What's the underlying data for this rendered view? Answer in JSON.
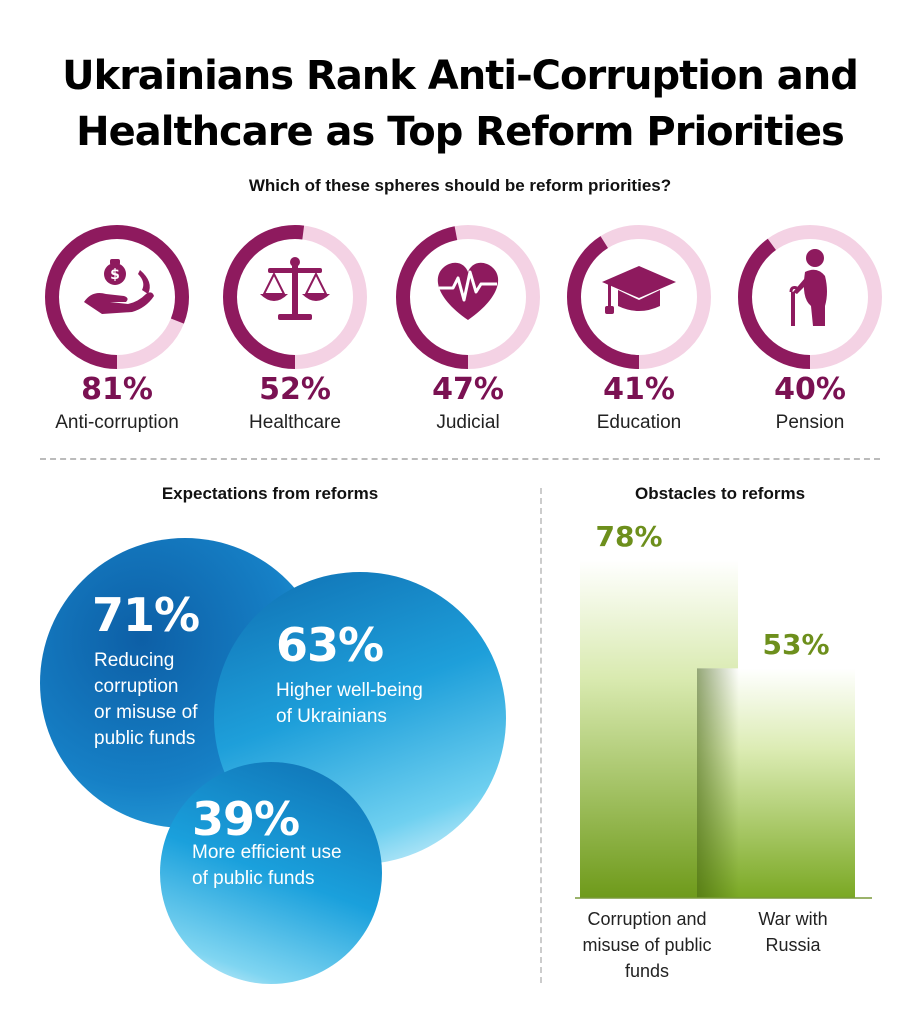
{
  "title": {
    "line1": "Ukrainians Rank Anti-Corruption and",
    "line2": "Healthcare as Top Reform Priorities"
  },
  "subtitle": "Which of these spheres should be reform priorities?",
  "priorities": [
    {
      "pct": "81%",
      "label": "Anti-corruption",
      "value": 81,
      "icon": "money-bag-hand-icon"
    },
    {
      "pct": "52%",
      "label": "Healthcare",
      "value": 52,
      "icon": "scales-icon"
    },
    {
      "pct": "47%",
      "label": "Judicial",
      "value": 47,
      "icon": "heart-pulse-icon"
    },
    {
      "pct": "41%",
      "label": "Education",
      "value": 41,
      "icon": "graduation-cap-icon"
    },
    {
      "pct": "40%",
      "label": "Pension",
      "value": 40,
      "icon": "elderly-person-icon"
    }
  ],
  "expectations": {
    "title": "Expectations from reforms",
    "items": [
      {
        "pct": "71%",
        "text": [
          "Reducing",
          "corruption",
          "or misuse of",
          "public funds"
        ],
        "value": 71
      },
      {
        "pct": "63%",
        "text": [
          "Higher well-being",
          "of Ukrainians"
        ],
        "value": 63
      },
      {
        "pct": "39%",
        "text": [
          "More efficient use",
          "of public funds"
        ],
        "value": 39
      }
    ]
  },
  "obstacles": {
    "title": "Obstacles to reforms"
  },
  "chart_data": [
    {
      "type": "pie",
      "title": "Which of these spheres should be reform priorities?",
      "categories": [
        "Anti-corruption",
        "Healthcare",
        "Judicial",
        "Education",
        "Pension"
      ],
      "values": [
        81,
        52,
        47,
        41,
        40
      ],
      "unit": "%"
    },
    {
      "type": "bar",
      "title": "Obstacles to reforms",
      "categories": [
        "Corruption and misuse of public funds",
        "War with Russia"
      ],
      "category_lines": [
        [
          "Corruption and",
          "misuse of public",
          "funds"
        ],
        [
          "War with",
          "Russia"
        ]
      ],
      "values": [
        78,
        53
      ],
      "value_labels": [
        "78%",
        "53%"
      ],
      "ylim": [
        0,
        100
      ],
      "color": "#6d8f1c",
      "grid": false
    }
  ],
  "colors": {
    "accent": "#7a1152",
    "ring_dark": "#8e1a5e",
    "ring_light": "#f4d2e4",
    "bubble_blue": "#1478bf",
    "bar_green": "#7ea623"
  }
}
